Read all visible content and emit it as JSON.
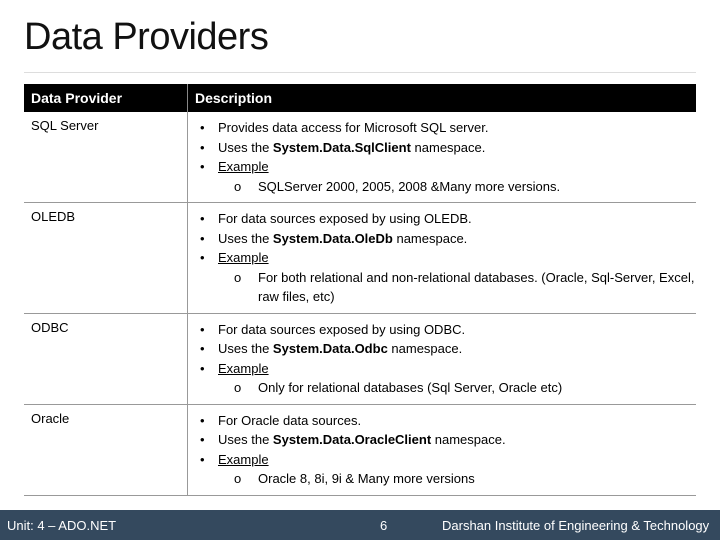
{
  "title": "Data Providers",
  "table": {
    "headers": [
      "Data Provider",
      "Description"
    ],
    "rows": [
      {
        "provider": "SQL Server",
        "bullets": [
          [
            {
              "t": "Provides data access for Microsoft SQL server."
            }
          ],
          [
            {
              "t": "Uses the "
            },
            {
              "t": "System.Data.SqlClient",
              "b": true
            },
            {
              "t": " namespace."
            }
          ],
          [
            {
              "t": "Example",
              "u": true
            }
          ]
        ],
        "sub": [
          "SQLServer 2000, 2005, 2008 &Many more versions."
        ]
      },
      {
        "provider": "OLEDB",
        "bullets": [
          [
            {
              "t": "For data sources exposed by using OLEDB."
            }
          ],
          [
            {
              "t": "Uses the "
            },
            {
              "t": "System.Data.OleDb",
              "b": true
            },
            {
              "t": " namespace."
            }
          ],
          [
            {
              "t": "Example",
              "u": true
            }
          ]
        ],
        "sub": [
          "For both relational and non-relational databases. (Oracle, Sql-Server, Excel, raw files, etc)"
        ]
      },
      {
        "provider": "ODBC",
        "bullets": [
          [
            {
              "t": "For data sources exposed by using ODBC."
            }
          ],
          [
            {
              "t": "Uses the "
            },
            {
              "t": "System.Data.Odbc",
              "b": true
            },
            {
              "t": " namespace."
            }
          ],
          [
            {
              "t": "Example",
              "u": true
            }
          ]
        ],
        "sub": [
          "Only for relational databases (Sql Server, Oracle etc)"
        ]
      },
      {
        "provider": "Oracle",
        "bullets": [
          [
            {
              "t": "For Oracle data sources."
            }
          ],
          [
            {
              "t": "Uses the "
            },
            {
              "t": "System.Data.OracleClient",
              "b": true
            },
            {
              "t": " namespace."
            }
          ],
          [
            {
              "t": "Example",
              "u": true
            }
          ]
        ],
        "sub": [
          "Oracle 8, 8i, 9i & Many more versions"
        ]
      }
    ]
  },
  "footer": {
    "unit": "Unit: 4 – ADO.NET",
    "page": "6",
    "institute": "Darshan Institute of Engineering & Technology"
  },
  "colors": {
    "header_bg": "#000000",
    "footer_bg": "#34495e"
  }
}
